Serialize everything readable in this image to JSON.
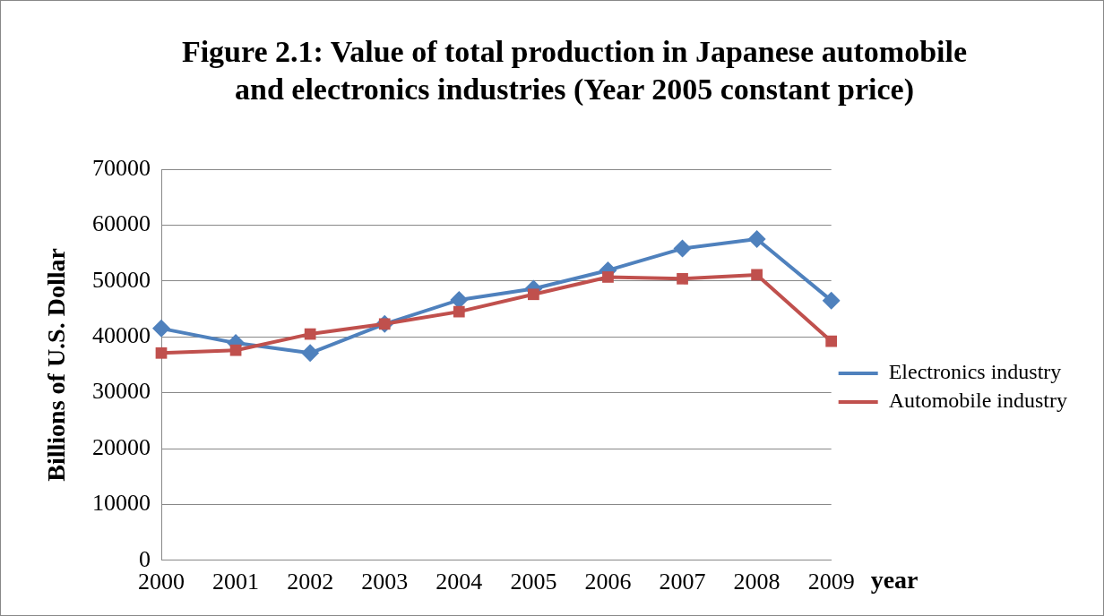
{
  "chart_data": {
    "type": "line",
    "title": "Figure 2.1: Value of total production in Japanese automobile and electronics industries (Year 2005 constant price)",
    "xlabel": "year",
    "ylabel": "Billions of U.S. Dollar",
    "categories": [
      "2000",
      "2001",
      "2002",
      "2003",
      "2004",
      "2005",
      "2006",
      "2007",
      "2008",
      "2009"
    ],
    "series": [
      {
        "name": "Electronics industry",
        "color": "#4f81bd",
        "marker": "diamond",
        "values": [
          41500,
          38900,
          37100,
          42300,
          46600,
          48600,
          51900,
          55800,
          57500,
          46500
        ]
      },
      {
        "name": "Automobile industry",
        "color": "#c0504d",
        "marker": "square",
        "values": [
          37100,
          37600,
          40500,
          42300,
          44500,
          47600,
          50700,
          50400,
          51100,
          39200
        ]
      }
    ],
    "ylim": [
      0,
      70000
    ],
    "yticks": [
      0,
      10000,
      20000,
      30000,
      40000,
      50000,
      60000,
      70000
    ],
    "grid": "y",
    "legend": "right"
  }
}
